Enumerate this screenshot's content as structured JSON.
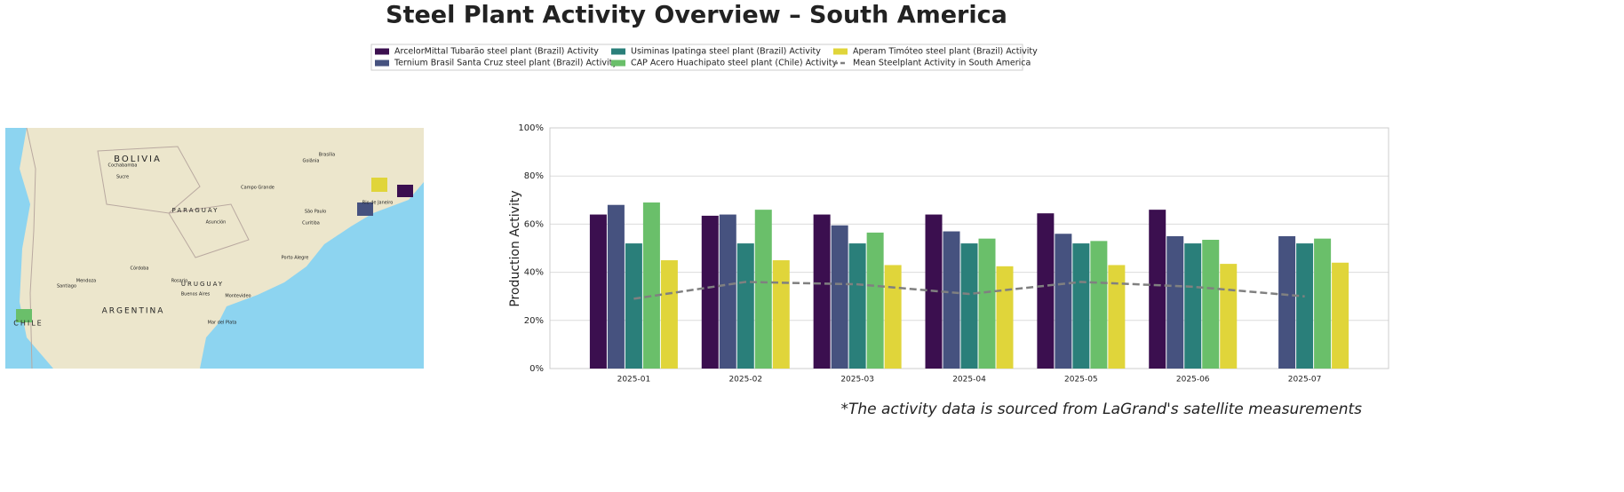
{
  "chart_data": {
    "type": "bar",
    "title": "Steel Plant Activity Overview – South America",
    "ylabel": "Production Activity",
    "footnote": "*The activity data is sourced from LaGrand's satellite measurements",
    "categories": [
      "2025-01",
      "2025-02",
      "2025-03",
      "2025-04",
      "2025-05",
      "2025-06",
      "2025-07"
    ],
    "series": [
      {
        "name": "ArcelorMittal Tubarão steel plant (Brazil) Activity",
        "color": "#3b0f4f",
        "values": [
          64,
          63.5,
          64,
          64,
          64.5,
          66,
          null
        ]
      },
      {
        "name": "Ternium Brasil Santa Cruz steel plant (Brazil) Activity",
        "color": "#46527f",
        "values": [
          68,
          64,
          59.5,
          57,
          56,
          55,
          55
        ]
      },
      {
        "name": "Usiminas Ipatinga steel plant (Brazil) Activity",
        "color": "#2a7f7a",
        "values": [
          52,
          52,
          52,
          52,
          52,
          52,
          52
        ]
      },
      {
        "name": "CAP Acero Huachipato steel plant (Chile) Activity",
        "color": "#6abf6a",
        "values": [
          69,
          66,
          56.5,
          54,
          53,
          53.5,
          54
        ]
      },
      {
        "name": "Aperam Timóteo steel plant (Brazil) Activity",
        "color": "#e0d53a",
        "values": [
          45,
          45,
          43,
          42.5,
          43,
          43.5,
          44
        ]
      },
      {
        "name": "Mean Steelplant Activity in South America",
        "color": "#808080",
        "kind": "line",
        "values": [
          29,
          36,
          35,
          31,
          36,
          34,
          30
        ]
      }
    ],
    "ylim": [
      0,
      100
    ],
    "yticks": [
      {
        "value": 0,
        "label": "0%"
      },
      {
        "value": 20,
        "label": "20%"
      },
      {
        "value": 40,
        "label": "40%"
      },
      {
        "value": 60,
        "label": "60%"
      },
      {
        "value": 80,
        "label": "80%"
      },
      {
        "value": 100,
        "label": "100%"
      }
    ],
    "grid": true
  },
  "map": {
    "labels": [
      "BOLIVIA",
      "PARAGUAY",
      "URUGUAY",
      "ARGENTINA",
      "CHILE",
      "Brasília",
      "Goiânia",
      "Campo Grande",
      "São Paulo",
      "Rio de Janeiro",
      "Curitiba",
      "Porto Alegre",
      "Asunción",
      "Córdoba",
      "Rosario",
      "Buenos Aires",
      "Montevideo",
      "Santiago",
      "Mendoza",
      "Sucre",
      "Cochabamba",
      "Mar del Plata"
    ]
  }
}
